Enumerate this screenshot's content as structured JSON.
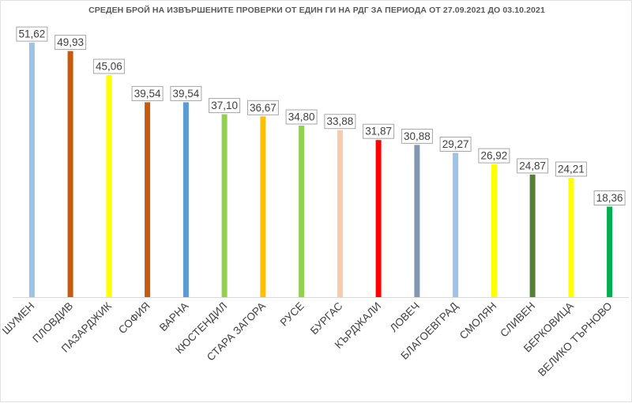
{
  "chart_data": {
    "type": "bar",
    "title": "СРЕДЕН БРОЙ НА ИЗВЪРШЕНИТЕ ПРОВЕРКИ ОТ ЕДИН ГИ НА РДГ ЗА ПЕРИОДА ОТ 27.09.2021 ДО 03.10.2021",
    "xlabel": "",
    "ylabel": "",
    "categories": [
      "ШУМЕН",
      "ПЛОВДИВ",
      "ПАЗАРДЖИК",
      "СОФИЯ",
      "ВАРНА",
      "КЮСТЕНДИЛ",
      "СТАРА ЗАГОРА",
      "РУСЕ",
      "БУРГАС",
      "КЪРДЖАЛИ",
      "ЛОВЕЧ",
      "БЛАГОЕВГРАД",
      "СМОЛЯН",
      "СЛИВЕН",
      "БЕРКОВИЦА",
      "ВЕЛИКО ТЪРНОВО"
    ],
    "values": [
      51.62,
      49.93,
      45.06,
      39.54,
      39.54,
      37.1,
      36.67,
      34.8,
      33.88,
      31.87,
      30.88,
      29.27,
      26.92,
      24.87,
      24.21,
      18.36
    ],
    "value_labels": [
      "51,62",
      "49,93",
      "45,06",
      "39,54",
      "39,54",
      "37,10",
      "36,67",
      "34,80",
      "33,88",
      "31,87",
      "30,88",
      "29,27",
      "26,92",
      "24,87",
      "24,21",
      "18,36"
    ],
    "colors": [
      "#9DC3E6",
      "#C55A11",
      "#FFFF00",
      "#C55A11",
      "#5B9BD5",
      "#92D050",
      "#FFC000",
      "#92D050",
      "#F8CBAD",
      "#FF0000",
      "#8497B0",
      "#9DC3E6",
      "#FFFF00",
      "#548235",
      "#FFFF00",
      "#00B050"
    ],
    "ylim": [
      0,
      55
    ],
    "grid": false,
    "legend": "none"
  }
}
